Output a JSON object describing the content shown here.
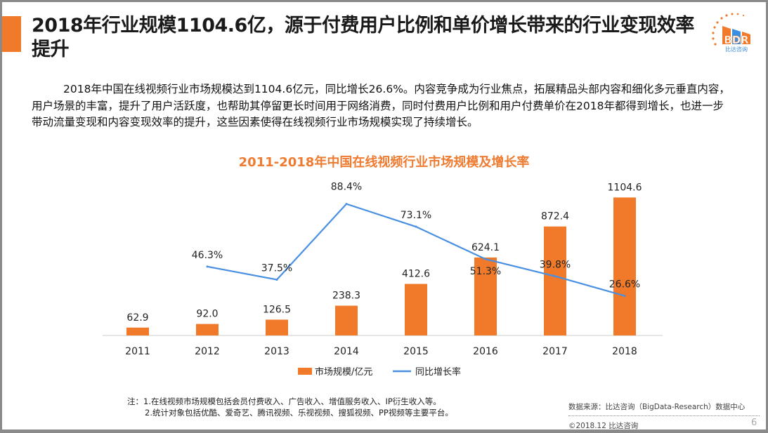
{
  "title": "2018年行业规模1104.6亿，源于付费用户比例和单价增长带来的行业变现效率提升",
  "logo": {
    "text": "BDR",
    "subtext": "比达咨询"
  },
  "body": "2018年中国在线视频行业市场规模达到1104.6亿元，同比增长26.6%。内容竞争成为行业焦点，拓展精品头部内容和细化多元垂直内容，用户场景的丰富，提升了用户活跃度，也帮助其停留更长时间用于网络消费，同时付费用户比例和用户付费单价在2018年都得到增长，也进一步带动流量变现和内容变现效率的提升，这些因素使得在线视频行业市场规模实现了持续增长。",
  "chart_data": {
    "type": "bar+line",
    "title": "2011-2018年中国在线视频行业市场规模及增长率",
    "categories": [
      "2011",
      "2012",
      "2013",
      "2014",
      "2015",
      "2016",
      "2017",
      "2018"
    ],
    "series": [
      {
        "name": "市场规模/亿元",
        "type": "bar",
        "color": "#f07a2a",
        "values": [
          62.9,
          92.0,
          126.5,
          238.3,
          412.6,
          624.1,
          872.4,
          1104.6
        ],
        "labels": [
          "62.9",
          "92.0",
          "126.5",
          "238.3",
          "412.6",
          "624.1",
          "872.4",
          "1104.6"
        ]
      },
      {
        "name": "同比增长率",
        "type": "line",
        "color": "#4a90e2",
        "values": [
          null,
          46.3,
          37.5,
          88.4,
          73.1,
          51.3,
          39.8,
          26.6
        ],
        "labels": [
          "",
          "46.3%",
          "37.5%",
          "88.4%",
          "73.1%",
          "51.3%",
          "39.8%",
          "26.6%"
        ]
      }
    ],
    "legend": "bottom",
    "grid": false
  },
  "notes": [
    "注：1.在线视频市场规模包括会员付费收入、广告收入、增值服务收入、IP衍生收入等。",
    "2.统计对象包括优酷、爱奇艺、腾讯视频、乐视视频、搜狐视频、PP视频等主要平台。"
  ],
  "source": "数据来源：比达咨询（BigData-Research）数据中心",
  "copyright": "©2018.12 比达咨询",
  "page": "6"
}
